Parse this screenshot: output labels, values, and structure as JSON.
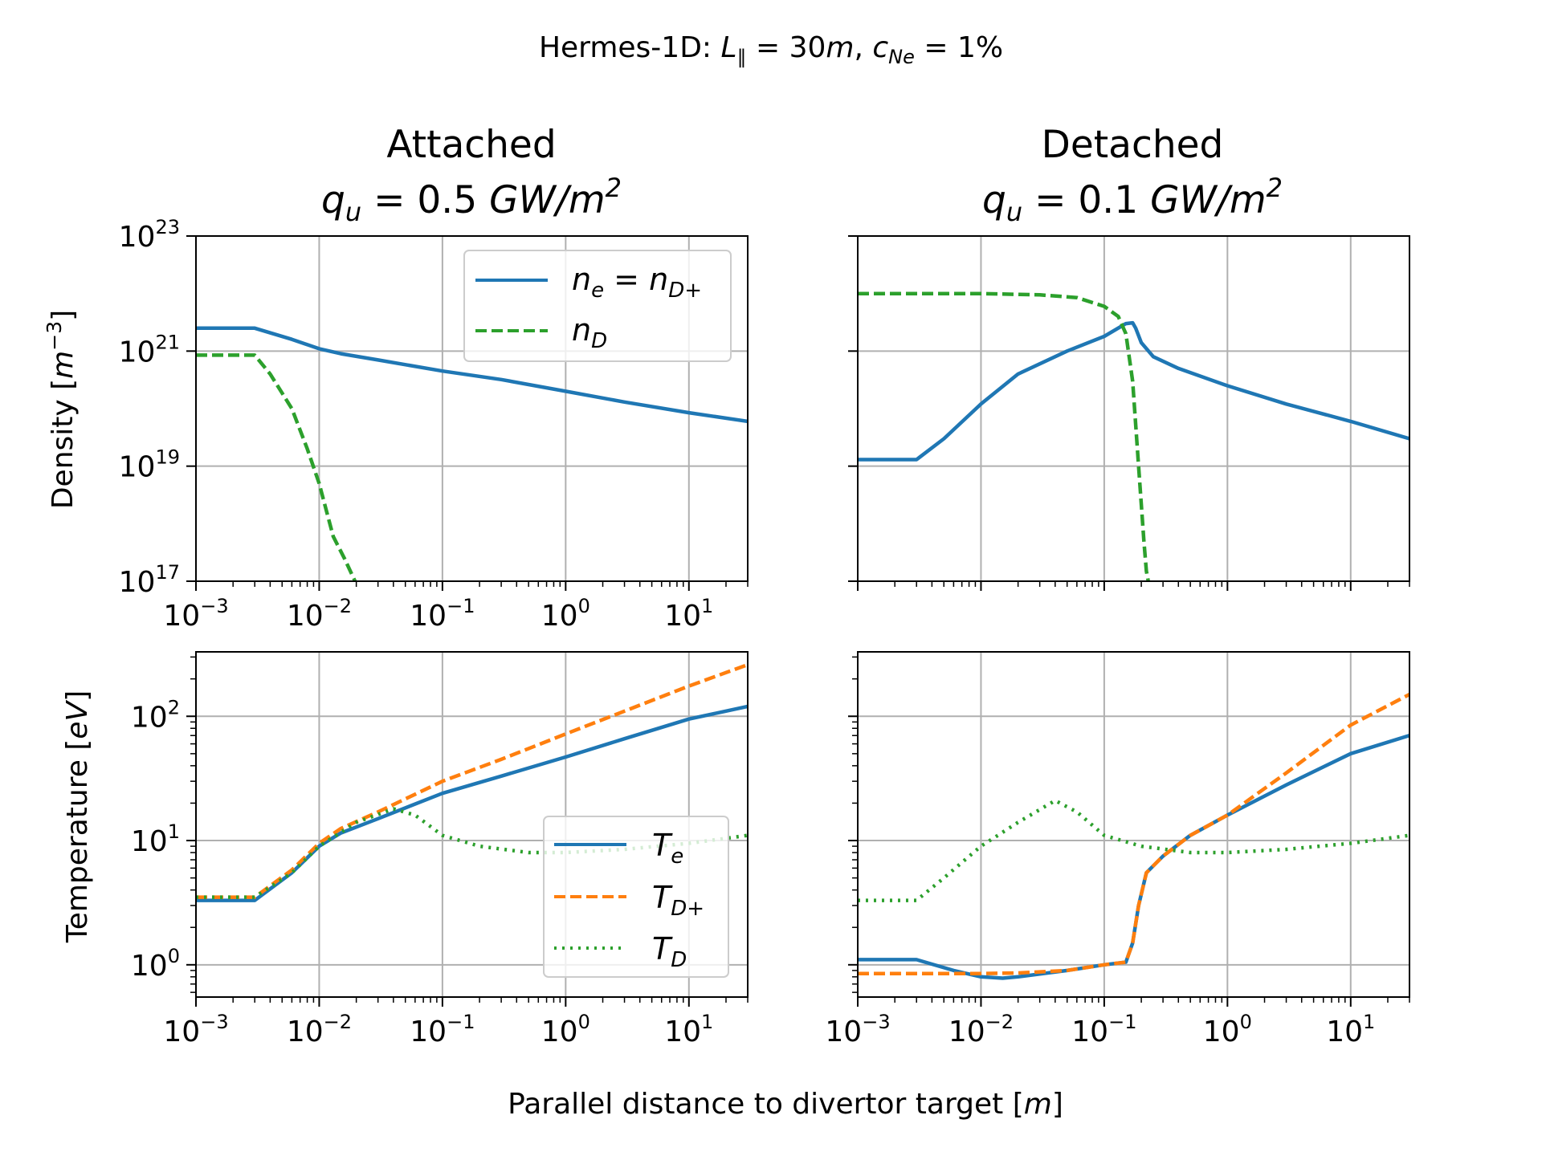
{
  "figure": {
    "suptitle": {
      "prefix": "Hermes-1D: ",
      "L": "L",
      "L_sub": "∥",
      "L_eq": " = 30",
      "L_unit": "m",
      "sep": ", ",
      "c": "c",
      "c_sub": "Ne",
      "c_eq": " = 1%"
    },
    "xlabel": {
      "text": "Parallel distance to divertor target [",
      "unit": "m",
      "close": "]"
    }
  },
  "chart_data": [
    {
      "id": "attached_density",
      "type": "line",
      "column_title": {
        "line1": "Attached",
        "q": "q",
        "q_sub": "u",
        "q_eq": " =  0.5 ",
        "unit": "GW/m",
        "unit_sup": "2"
      },
      "ylabel": {
        "text": "Density [",
        "unit": "m",
        "unit_sup": "−3",
        "close": "]"
      },
      "xscale": "log",
      "yscale": "log",
      "xlim": [
        0.001,
        30
      ],
      "ylim": [
        1e+17,
        1e+23
      ],
      "xticks": [
        {
          "base": "10",
          "exp": "−3"
        },
        {
          "base": "10",
          "exp": "−2"
        },
        {
          "base": "10",
          "exp": "−1"
        },
        {
          "base": "10",
          "exp": "0"
        },
        {
          "base": "10",
          "exp": "1"
        }
      ],
      "yticks": [
        {
          "base": "10",
          "exp": "17"
        },
        {
          "base": "10",
          "exp": "19"
        },
        {
          "base": "10",
          "exp": "21"
        },
        {
          "base": "10",
          "exp": "23"
        }
      ],
      "grid": true,
      "legend": {
        "location": "upper-right",
        "entries": [
          {
            "base": "n",
            "sub": "e",
            "mid": " = ",
            "base2": "n",
            "sub2": "D+"
          },
          {
            "base": "n",
            "sub": "D"
          }
        ]
      },
      "series": [
        {
          "name": "n_e = n_D+",
          "color": "#1f77b4",
          "style": "solid",
          "x": [
            0.001,
            0.003,
            0.006,
            0.01,
            0.015,
            0.03,
            0.1,
            0.3,
            1,
            3,
            10,
            30
          ],
          "y": [
            2.5e+21,
            2.5e+21,
            1.6e+21,
            1.1e+21,
            9e+20,
            7e+20,
            4.5e+20,
            3.2e+20,
            2e+20,
            1.3e+20,
            8.5e+19,
            6e+19
          ]
        },
        {
          "name": "n_D",
          "color": "#2ca02c",
          "style": "dashed",
          "x": [
            0.001,
            0.002,
            0.003,
            0.004,
            0.006,
            0.008,
            0.01,
            0.013,
            0.016,
            0.02
          ],
          "y": [
            8.5e+20,
            8.5e+20,
            8.5e+20,
            4e+20,
            1e+20,
            2e+19,
            5e+18,
            6e+17,
            2.5e+17,
            9e+16
          ]
        }
      ]
    },
    {
      "id": "detached_density",
      "type": "line",
      "column_title": {
        "line1": "Detached",
        "q": "q",
        "q_sub": "u",
        "q_eq": " =  0.1 ",
        "unit": "GW/m",
        "unit_sup": "2"
      },
      "xscale": "log",
      "yscale": "log",
      "xlim": [
        0.001,
        30
      ],
      "ylim": [
        1e+17,
        1e+23
      ],
      "xticks": [],
      "yticks": [],
      "grid": true,
      "series": [
        {
          "name": "n_e = n_D+",
          "color": "#1f77b4",
          "style": "solid",
          "x": [
            0.001,
            0.003,
            0.005,
            0.01,
            0.02,
            0.05,
            0.1,
            0.15,
            0.17,
            0.18,
            0.2,
            0.25,
            0.4,
            1,
            3,
            10,
            30
          ],
          "y": [
            1.3e+19,
            1.3e+19,
            3e+19,
            1.2e+20,
            4e+20,
            1e+21,
            1.8e+21,
            3e+21,
            3.1e+21,
            2.5e+21,
            1.4e+21,
            8e+20,
            5e+20,
            2.5e+20,
            1.2e+20,
            6e+19,
            3e+19
          ]
        },
        {
          "name": "n_D",
          "color": "#2ca02c",
          "style": "dashed",
          "x": [
            0.001,
            0.01,
            0.03,
            0.06,
            0.1,
            0.13,
            0.15,
            0.17,
            0.19,
            0.21,
            0.22,
            0.23
          ],
          "y": [
            1e+22,
            1e+22,
            9.5e+21,
            8.5e+21,
            6e+21,
            4e+21,
            2e+21,
            3e+20,
            1e+19,
            5e+17,
            1.5e+17,
            9e+16
          ]
        }
      ]
    },
    {
      "id": "attached_temperature",
      "type": "line",
      "ylabel": {
        "text": "Temperature [",
        "unit": "eV",
        "close": "]"
      },
      "xscale": "log",
      "yscale": "log",
      "xlim": [
        0.001,
        30
      ],
      "ylim": [
        0.55,
        330
      ],
      "xticks": [
        {
          "base": "10",
          "exp": "−3"
        },
        {
          "base": "10",
          "exp": "−2"
        },
        {
          "base": "10",
          "exp": "−1"
        },
        {
          "base": "10",
          "exp": "0"
        },
        {
          "base": "10",
          "exp": "1"
        }
      ],
      "yticks": [
        {
          "base": "10",
          "exp": "0"
        },
        {
          "base": "10",
          "exp": "1"
        },
        {
          "base": "10",
          "exp": "2"
        }
      ],
      "grid": true,
      "legend": {
        "location": "lower-right",
        "entries": [
          {
            "base": "T",
            "sub": "e"
          },
          {
            "base": "T",
            "sub": "D+"
          },
          {
            "base": "T",
            "sub": "D"
          }
        ]
      },
      "series": [
        {
          "name": "T_e",
          "color": "#1f77b4",
          "style": "solid",
          "x": [
            0.001,
            0.003,
            0.006,
            0.01,
            0.015,
            0.03,
            0.1,
            0.3,
            1,
            3,
            10,
            30
          ],
          "y": [
            3.3,
            3.3,
            5.5,
            9,
            11.5,
            15,
            24,
            33,
            47,
            66,
            95,
            120
          ]
        },
        {
          "name": "T_D+",
          "color": "#ff7f0e",
          "style": "dashed",
          "x": [
            0.001,
            0.003,
            0.006,
            0.01,
            0.015,
            0.03,
            0.1,
            0.3,
            1,
            3,
            10,
            30
          ],
          "y": [
            3.5,
            3.5,
            5.8,
            9.5,
            12.5,
            17,
            30,
            45,
            72,
            110,
            175,
            260
          ]
        },
        {
          "name": "T_D",
          "color": "#2ca02c",
          "style": "dotted",
          "x": [
            0.001,
            0.003,
            0.006,
            0.01,
            0.02,
            0.04,
            0.06,
            0.1,
            0.2,
            0.5,
            1,
            3,
            10,
            30
          ],
          "y": [
            3.5,
            3.5,
            5.5,
            9,
            14,
            18,
            16,
            11,
            9,
            8,
            8,
            8.5,
            9.5,
            11
          ]
        }
      ]
    },
    {
      "id": "detached_temperature",
      "type": "line",
      "xscale": "log",
      "yscale": "log",
      "xlim": [
        0.001,
        30
      ],
      "ylim": [
        0.55,
        330
      ],
      "xticks": [
        {
          "base": "10",
          "exp": "−3"
        },
        {
          "base": "10",
          "exp": "−2"
        },
        {
          "base": "10",
          "exp": "−1"
        },
        {
          "base": "10",
          "exp": "0"
        },
        {
          "base": "10",
          "exp": "1"
        }
      ],
      "yticks": [],
      "grid": true,
      "series": [
        {
          "name": "T_e",
          "color": "#1f77b4",
          "style": "solid",
          "x": [
            0.001,
            0.003,
            0.006,
            0.01,
            0.015,
            0.02,
            0.05,
            0.1,
            0.15,
            0.17,
            0.19,
            0.22,
            0.3,
            0.5,
            1,
            3,
            10,
            30
          ],
          "y": [
            1.1,
            1.1,
            0.9,
            0.8,
            0.78,
            0.8,
            0.9,
            1.0,
            1.05,
            1.5,
            3.0,
            5.5,
            7.5,
            11,
            16,
            28,
            50,
            70
          ]
        },
        {
          "name": "T_D+",
          "color": "#ff7f0e",
          "style": "dashed",
          "x": [
            0.001,
            0.01,
            0.02,
            0.05,
            0.1,
            0.15,
            0.17,
            0.19,
            0.22,
            0.3,
            0.5,
            1,
            3,
            10,
            30
          ],
          "y": [
            0.85,
            0.85,
            0.86,
            0.9,
            1.0,
            1.05,
            1.5,
            3.0,
            5.5,
            7.5,
            11,
            16,
            35,
            85,
            150
          ]
        },
        {
          "name": "T_D",
          "color": "#2ca02c",
          "style": "dotted",
          "x": [
            0.001,
            0.003,
            0.005,
            0.01,
            0.02,
            0.04,
            0.06,
            0.1,
            0.2,
            0.5,
            1,
            3,
            10,
            30
          ],
          "y": [
            3.3,
            3.3,
            5,
            9,
            14,
            21,
            17,
            11,
            9,
            8,
            8,
            8.5,
            9.5,
            11
          ]
        }
      ]
    }
  ]
}
